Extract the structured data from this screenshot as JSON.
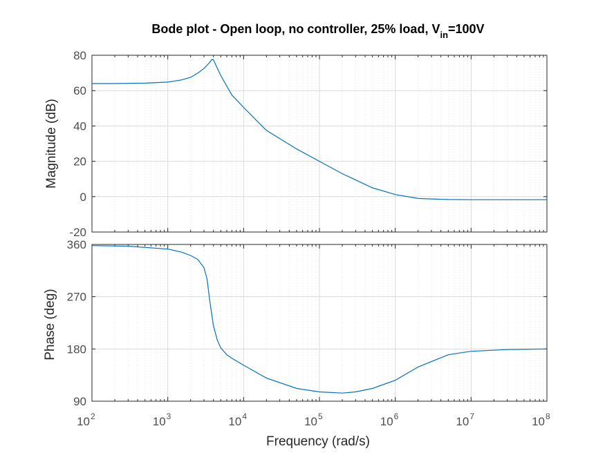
{
  "chart_data": {
    "type": "line",
    "title_main": "Bode plot - Open loop, no controller, 25% load, V",
    "title_sub": "in",
    "title_tail": "=100V",
    "xlabel": "Frequency  (rad/s)",
    "xscale": "log",
    "xlim": [
      100,
      100000000
    ],
    "x_ticks": [
      {
        "base": "10",
        "exp": "2"
      },
      {
        "base": "10",
        "exp": "3"
      },
      {
        "base": "10",
        "exp": "4"
      },
      {
        "base": "10",
        "exp": "5"
      },
      {
        "base": "10",
        "exp": "6"
      },
      {
        "base": "10",
        "exp": "7"
      },
      {
        "base": "10",
        "exp": "8"
      }
    ],
    "grid": true,
    "line_color": "#0072bd",
    "subplots": [
      {
        "ylabel": "Magnitude (dB)",
        "ylim": [
          -20,
          80
        ],
        "yticks": [
          "-20",
          "0",
          "20",
          "40",
          "60",
          "80"
        ],
        "series": [
          {
            "x": [
              100,
              200,
              500,
              1000,
              1500,
              2000,
              2500,
              3000,
              3500,
              3800,
              4000,
              4300,
              5000,
              6000,
              7000,
              10000,
              20000,
              50000,
              100000,
              200000,
              500000,
              1000000,
              2000000,
              3000000,
              5000000,
              10000000,
              100000000
            ],
            "y": [
              64,
              64,
              64.2,
              64.8,
              66,
              67.5,
              70,
              72.5,
              75.5,
              77.5,
              77.5,
              74.5,
              68.5,
              62.5,
              57.5,
              50.5,
              37.5,
              27,
              20,
              13,
              5,
              1.2,
              -1,
              -1.3,
              -1.6,
              -1.7,
              -1.7
            ]
          }
        ]
      },
      {
        "ylabel": "Phase (deg)",
        "ylim": [
          90,
          360
        ],
        "yticks": [
          "90",
          "180",
          "270",
          "360"
        ],
        "series": [
          {
            "x": [
              100,
              300,
              1000,
              1500,
              2000,
              2500,
              3000,
              3300,
              3600,
              4000,
              4500,
              5000,
              6000,
              7000,
              10000,
              20000,
              50000,
              100000,
              200000,
              300000,
              500000,
              1000000,
              2000000,
              5000000,
              10000000,
              30000000,
              100000000
            ],
            "y": [
              358,
              357,
              352,
              347,
              341,
              334,
              320,
              300,
              260,
              220,
              195,
              182,
              170,
              164,
              152,
              130,
              112,
              106,
              104,
              106,
              112,
              126,
              149,
              170,
              176,
              179,
              180
            ]
          }
        ]
      }
    ]
  }
}
